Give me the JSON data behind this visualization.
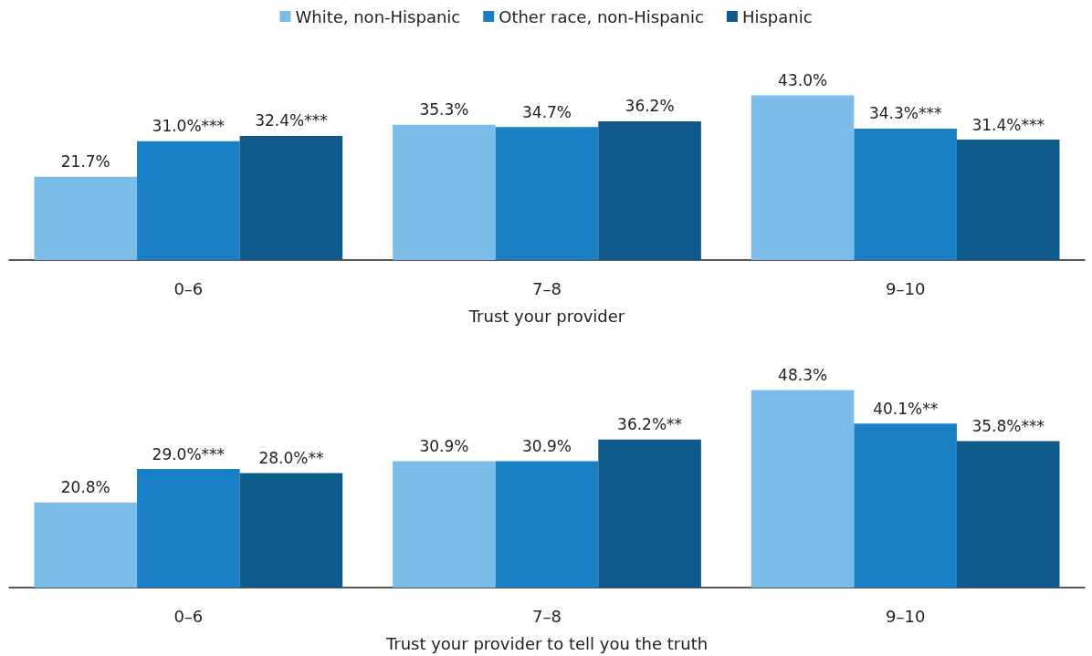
{
  "chart_data": [
    {
      "type": "bar",
      "xlabel": "Trust your provider",
      "categories": [
        "0–6",
        "7–8",
        "9–10"
      ],
      "legend": "top",
      "series": [
        {
          "name": "White, non-Hispanic",
          "color": "#7bbde8",
          "values": [
            21.7,
            35.3,
            43.0
          ],
          "value_labels": [
            "21.7%",
            "35.3%",
            "43.0%"
          ]
        },
        {
          "name": "Other race, non-Hispanic",
          "color": "#1a7fc4",
          "values": [
            31.0,
            34.7,
            34.3
          ],
          "value_labels": [
            "31.0%***",
            "34.7%",
            "34.3%***"
          ]
        },
        {
          "name": "Hispanic",
          "color": "#0d5a8b",
          "values": [
            32.4,
            36.2,
            31.4
          ],
          "value_labels": [
            "32.4%***",
            "36.2%",
            "31.4%***"
          ]
        }
      ]
    },
    {
      "type": "bar",
      "xlabel": "Trust your provider to tell you the truth",
      "categories": [
        "0–6",
        "7–8",
        "9–10"
      ],
      "series": [
        {
          "color": "#7bbde8",
          "values": [
            20.8,
            30.9,
            48.3
          ],
          "value_labels": [
            "20.8%",
            "30.9%",
            "48.3%"
          ]
        },
        {
          "color": "#1a7fc4",
          "values": [
            29.0,
            30.9,
            40.1
          ],
          "value_labels": [
            "29.0%***",
            "30.9%",
            "40.1%**"
          ]
        },
        {
          "color": "#0d5a8b",
          "values": [
            28.0,
            36.2,
            35.8
          ],
          "value_labels": [
            "28.0%**",
            "36.2%**",
            "35.8%***"
          ]
        }
      ]
    }
  ]
}
